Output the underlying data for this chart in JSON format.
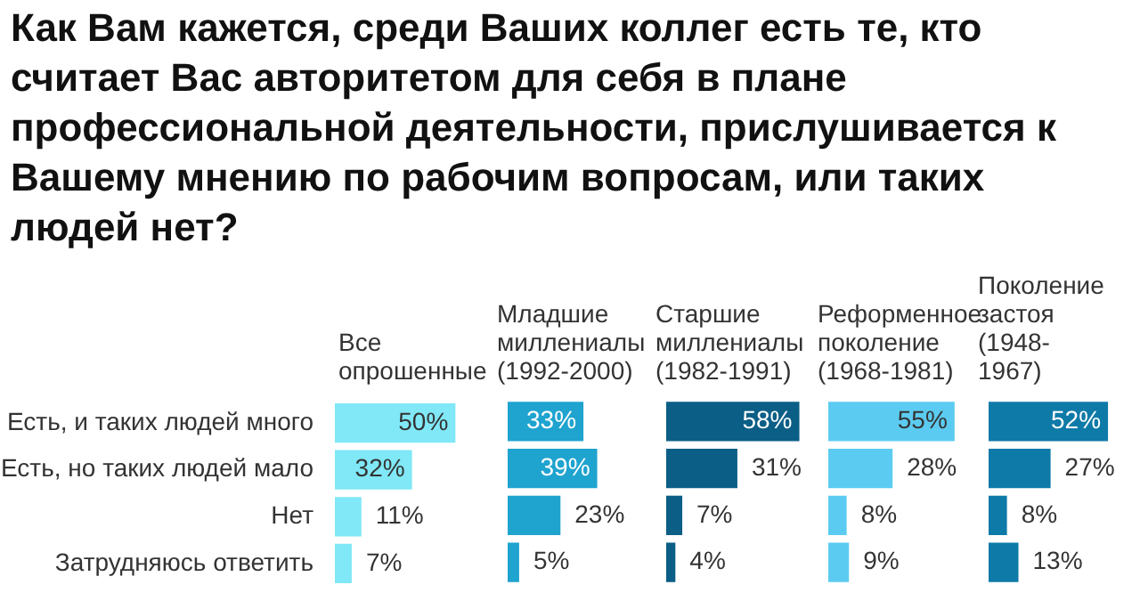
{
  "chart_data": [
    {
      "type": "bar",
      "orientation": "horizontal",
      "title": "Как Вам кажется, среди Ваших коллег есть те, кто считает Вас авторитетом для себя в плане профессиональной деятельности, прислушивается к Вашему мнению по рабочим вопросам, или таких людей нет?",
      "subtitle": "Все опрошенные",
      "categories": [
        "Есть, и таких людей много",
        "Есть, но таких людей мало",
        "Нет",
        "Затрудняюсь ответить"
      ],
      "values": [
        50,
        32,
        11,
        7
      ],
      "value_labels": [
        "50%",
        "32%",
        "11%",
        "7%"
      ],
      "color": "#80e8f6",
      "tick_labels": "y"
    },
    {
      "type": "bar",
      "orientation": "horizontal",
      "title": "Младшие миллениалы (1992-2000)",
      "categories": [
        null,
        null,
        null,
        null
      ],
      "values": [
        33,
        39,
        23,
        5
      ],
      "value_labels": [
        "33%",
        "39%",
        "23%",
        "5%"
      ],
      "color": "#1fa3cf",
      "tick_labels": false
    },
    {
      "type": "bar",
      "orientation": "horizontal",
      "title": "Старшие миллениалы (1982-1991)",
      "categories": [
        null,
        null,
        null,
        null
      ],
      "values": [
        58,
        31,
        7,
        4
      ],
      "value_labels": [
        "58%",
        "31%",
        "7%",
        "4%"
      ],
      "color": "#0b5e86",
      "tick_labels": false
    },
    {
      "type": "bar",
      "orientation": "horizontal",
      "title": "Реформенное поколение (1968-1981)",
      "categories": [
        null,
        null,
        null,
        null
      ],
      "values": [
        55,
        28,
        8,
        9
      ],
      "value_labels": [
        "55%",
        "28%",
        "8%",
        "9%"
      ],
      "color": "#5ccbf1",
      "tick_labels": false
    },
    {
      "type": "bar",
      "orientation": "horizontal",
      "title": "Поколение застоя (1948-1967)",
      "categories": [
        null,
        null,
        null,
        null
      ],
      "values": [
        52,
        27,
        8,
        13
      ],
      "value_labels": [
        "52%",
        "27%",
        "8%",
        "13%"
      ],
      "color": "#0e7aa8",
      "tick_labels": false
    }
  ]
}
